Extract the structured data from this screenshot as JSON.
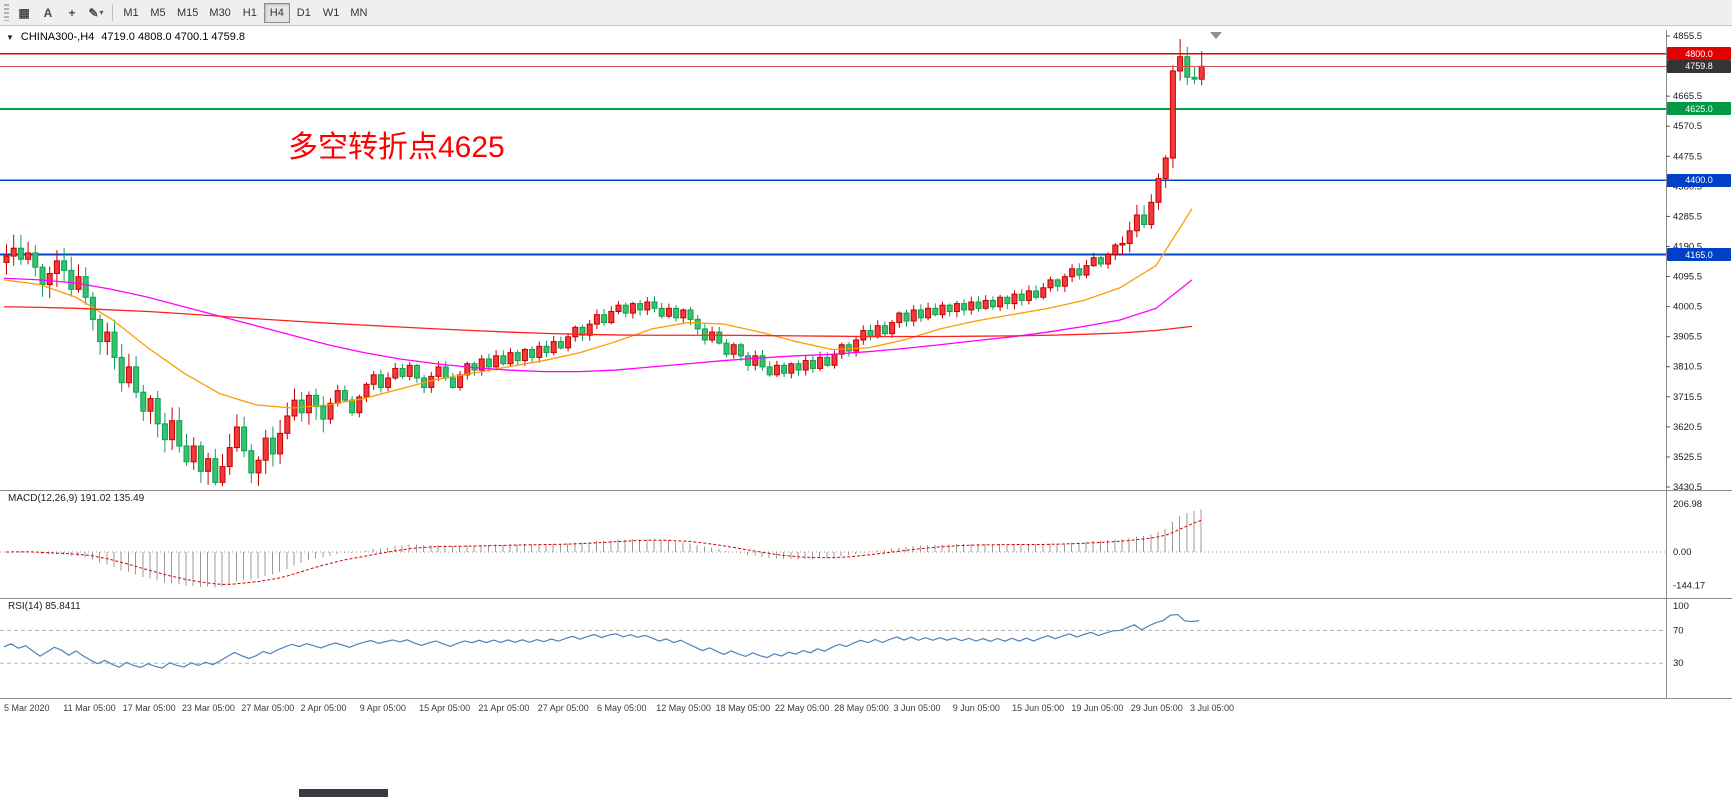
{
  "toolbar": {
    "icons": [
      {
        "name": "chart-grid-icon",
        "glyph": "▦"
      },
      {
        "name": "text-tool-icon",
        "glyph": "A"
      },
      {
        "name": "crosshair-icon",
        "glyph": "+"
      },
      {
        "name": "line-studies-icon",
        "glyph": "✎",
        "chevron": "▾"
      }
    ],
    "timeframes": [
      {
        "label": "M1"
      },
      {
        "label": "M5"
      },
      {
        "label": "M15"
      },
      {
        "label": "M30"
      },
      {
        "label": "H1"
      },
      {
        "label": "H4",
        "active": true
      },
      {
        "label": "D1"
      },
      {
        "label": "W1"
      },
      {
        "label": "MN"
      }
    ]
  },
  "chart": {
    "collapse_icon": "▼",
    "header_symbol": "CHINA300-,H4",
    "header_ohlc": "4719.0 4808.0 4700.1 4759.8",
    "annotation": {
      "text": "多空转折点4625",
      "color": "#ff0000"
    },
    "current_price_badge": "4759.8"
  },
  "macd": {
    "label": "MACD(12,26,9) 191.02 135.49",
    "scale": [
      {
        "text": "206.98",
        "value": 206.98
      },
      {
        "text": "0.00",
        "value": 0
      },
      {
        "text": "-144.17",
        "value": -144.17
      }
    ]
  },
  "rsi": {
    "label": "RSI(14) 85.8411",
    "scale": [
      {
        "text": "100",
        "value": 100
      },
      {
        "text": "70",
        "value": 70
      },
      {
        "text": "30",
        "value": 30
      }
    ],
    "levels": [
      70,
      30
    ]
  },
  "x_axis": {
    "labels": [
      "5 Mar 2020",
      "11 Mar 05:00",
      "17 Mar 05:00",
      "23 Mar 05:00",
      "27 Mar 05:00",
      "2 Apr 05:00",
      "9 Apr 05:00",
      "15 Apr 05:00",
      "21 Apr 05:00",
      "27 Apr 05:00",
      "6 May 05:00",
      "12 May 05:00",
      "18 May 05:00",
      "22 May 05:00",
      "28 May 05:00",
      "3 Jun 05:00",
      "9 Jun 05:00",
      "15 Jun 05:00",
      "19 Jun 05:00",
      "29 Jun 05:00",
      "3 Jul 05:00"
    ]
  },
  "y_axis": {
    "min": 3430.5,
    "max": 4855.5,
    "step": 95,
    "labels": [
      "4855.5",
      "4760.5",
      "4665.5",
      "4570.5",
      "4475.5",
      "4380.5",
      "4285.5",
      "4190.5",
      "4095.5",
      "4000.5",
      "3905.5",
      "3810.5",
      "3715.5",
      "3620.5",
      "3525.5",
      "3430.5"
    ]
  },
  "chart_data": {
    "type": "candlestick",
    "symbol": "CHINA300",
    "timeframe": "H4",
    "current_bar": {
      "open": 4719.0,
      "high": 4808.0,
      "low": 4700.1,
      "close": 4759.8
    },
    "first_open": 4140,
    "closes": [
      4160,
      4185,
      4150,
      4170,
      4125,
      4070,
      4105,
      4145,
      4115,
      4055,
      4095,
      4030,
      3960,
      3890,
      3920,
      3840,
      3760,
      3810,
      3730,
      3670,
      3710,
      3630,
      3580,
      3640,
      3560,
      3510,
      3560,
      3480,
      3520,
      3445,
      3495,
      3555,
      3620,
      3545,
      3475,
      3515,
      3585,
      3535,
      3600,
      3655,
      3705,
      3665,
      3720,
      3685,
      3645,
      3695,
      3735,
      3705,
      3665,
      3715,
      3755,
      3785,
      3745,
      3775,
      3805,
      3780,
      3815,
      3775,
      3745,
      3780,
      3810,
      3775,
      3745,
      3785,
      3820,
      3800,
      3835,
      3810,
      3845,
      3820,
      3855,
      3830,
      3865,
      3840,
      3875,
      3855,
      3890,
      3870,
      3905,
      3935,
      3910,
      3945,
      3975,
      3950,
      3985,
      4005,
      3980,
      4010,
      3990,
      4015,
      3995,
      3970,
      3995,
      3965,
      3990,
      3960,
      3930,
      3895,
      3920,
      3885,
      3850,
      3880,
      3845,
      3815,
      3845,
      3810,
      3785,
      3815,
      3790,
      3820,
      3800,
      3830,
      3805,
      3840,
      3815,
      3850,
      3880,
      3860,
      3895,
      3925,
      3905,
      3940,
      3915,
      3950,
      3980,
      3955,
      3990,
      3965,
      3995,
      3975,
      4005,
      3985,
      4010,
      3990,
      4015,
      3995,
      4020,
      4000,
      4030,
      4010,
      4040,
      4020,
      4050,
      4030,
      4060,
      4085,
      4065,
      4095,
      4120,
      4100,
      4130,
      4155,
      4135,
      4165,
      4195,
      4200,
      4240,
      4290,
      4260,
      4330,
      4405,
      4470,
      4745,
      4790,
      4725,
      4719,
      4759.8
    ],
    "overrides": {
      "high": {
        "163": 4846,
        "166": 4808
      },
      "low": {
        "29": 3436,
        "166": 4700.1
      }
    },
    "hlines": [
      {
        "price": 4800.0,
        "label": "4800.0",
        "color": "#e60000",
        "width": 1.4,
        "badge_bg": "#e00000"
      },
      {
        "price": 4625.0,
        "label": "4625.0",
        "color": "#00a14b",
        "width": 1.8,
        "badge_bg": "#009a44"
      },
      {
        "price": 4400.0,
        "label": "4400.0",
        "color": "#0044cc",
        "width": 1.8,
        "badge_bg": "#0040c8"
      },
      {
        "price": 4165.0,
        "label": "4165.0",
        "color": "#0044cc",
        "width": 1.8,
        "badge_bg": "#0040c8"
      }
    ],
    "bid_line": {
      "price": 4759.8,
      "color": "#d05050",
      "badge_bg": "#343434"
    },
    "moving_averages": [
      {
        "name": "ma-fast",
        "color": "#ff9c00",
        "sample_step": 5,
        "values": [
          4085,
          4070,
          4030,
          3960,
          3870,
          3790,
          3725,
          3690,
          3680,
          3690,
          3710,
          3740,
          3770,
          3790,
          3810,
          3830,
          3855,
          3890,
          3930,
          3950,
          3945,
          3920,
          3890,
          3865,
          3870,
          3895,
          3930,
          3955,
          3975,
          3995,
          4020,
          4060,
          4130,
          4310
        ]
      },
      {
        "name": "ma-mid",
        "color": "#ff00ff",
        "sample_step": 5,
        "values": [
          4090,
          4085,
          4075,
          4055,
          4030,
          4000,
          3970,
          3940,
          3910,
          3880,
          3855,
          3835,
          3820,
          3808,
          3800,
          3795,
          3795,
          3800,
          3810,
          3820,
          3830,
          3838,
          3845,
          3850,
          3858,
          3868,
          3880,
          3893,
          3905,
          3920,
          3938,
          3958,
          3995,
          4085
        ]
      },
      {
        "name": "ma-slow",
        "color": "#ff2020",
        "sample_step": 5,
        "values": [
          4000,
          3998,
          3995,
          3990,
          3985,
          3978,
          3970,
          3962,
          3955,
          3948,
          3942,
          3936,
          3930,
          3925,
          3920,
          3916,
          3913,
          3911,
          3910,
          3910,
          3910,
          3909,
          3908,
          3907,
          3906,
          3906,
          3906,
          3907,
          3908,
          3910,
          3913,
          3917,
          3925,
          3938
        ]
      }
    ],
    "colors": {
      "up": "#c40000",
      "up_fill": "#f23a3a",
      "down": "#0f9d58",
      "down_fill": "#35c46a",
      "macd_hist": "#9a9a9a",
      "macd_signal": "#d40000",
      "rsi_line": "#4f81bd"
    },
    "macd_params": {
      "fast": 12,
      "slow": 26,
      "signal": 9
    },
    "rsi_period": 14
  }
}
